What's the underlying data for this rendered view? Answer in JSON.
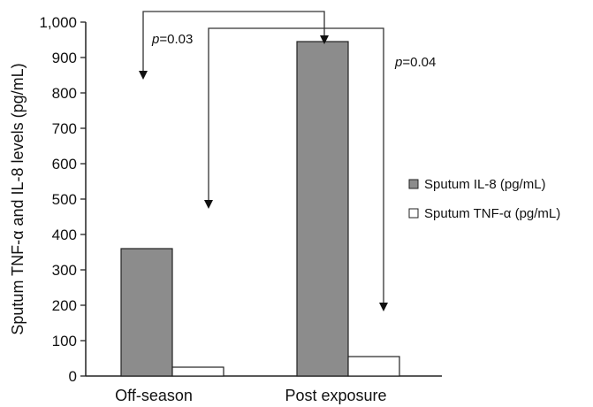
{
  "chart_data": {
    "type": "bar",
    "title": "",
    "xlabel": "",
    "ylabel": "Sputum TNF-α and IL-8 levels (pg/mL)",
    "categories": [
      "Off-season",
      "Post exposure"
    ],
    "ylim": [
      0,
      1000
    ],
    "yticks": [
      "0",
      "100",
      "200",
      "300",
      "400",
      "500",
      "600",
      "700",
      "800",
      "900",
      "1,000"
    ],
    "series": [
      {
        "name": "Sputum IL-8 (pg/mL)",
        "values": [
          360,
          945
        ],
        "color": "#8c8c8c"
      },
      {
        "name": "Sputum TNF-α (pg/mL)",
        "values": [
          25,
          55
        ],
        "color": "#ffffff"
      }
    ],
    "annotations": [
      {
        "italic": "p",
        "value": "=0.03"
      },
      {
        "italic": "p",
        "value": "=0.04"
      }
    ],
    "legend_position": "right",
    "grid": false
  }
}
